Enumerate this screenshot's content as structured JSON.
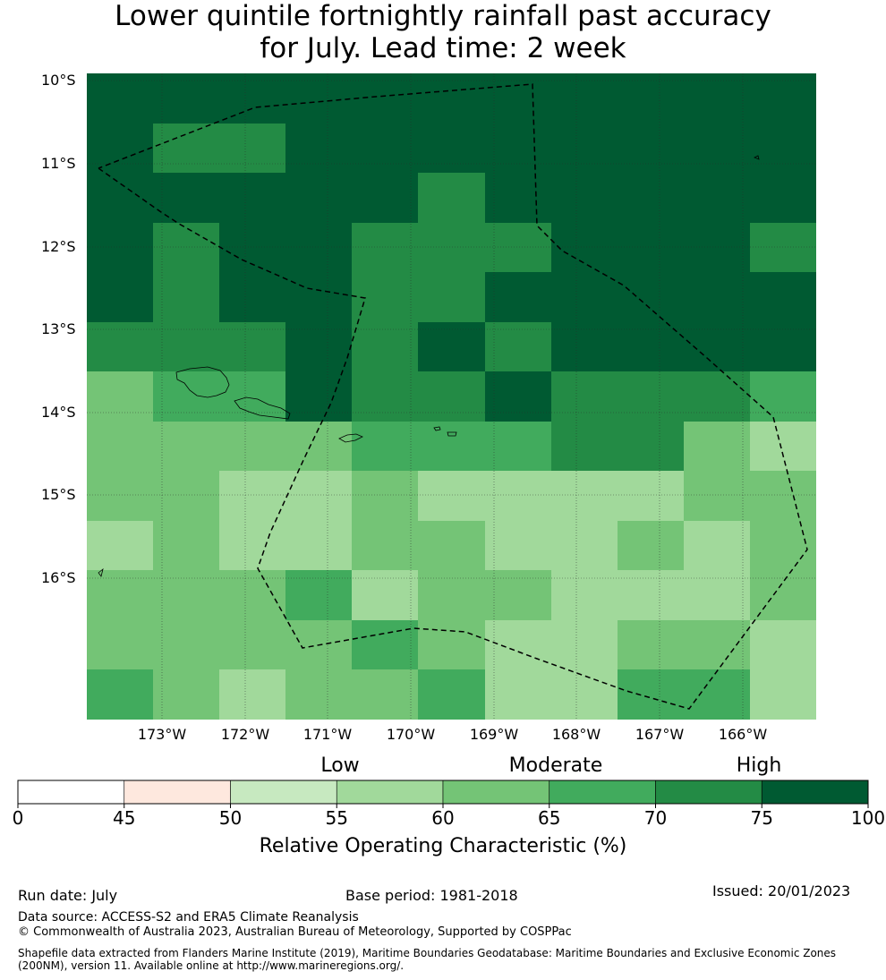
{
  "title": {
    "line1": "Lower quintile fortnightly rainfall past accuracy",
    "line2": "for July. Lead time: 2 week"
  },
  "map": {
    "lat_labels": [
      "10°S",
      "11°S",
      "12°S",
      "13°S",
      "14°S",
      "15°S",
      "16°S"
    ],
    "lon_labels": [
      "173°W",
      "172°W",
      "171°W",
      "170°W",
      "169°W",
      "168°W",
      "167°W",
      "166°W"
    ],
    "grid_lines": "dotted",
    "boundary_style": "dashed",
    "grid_values_roc_pct": [
      [
        80,
        80,
        80,
        80,
        80,
        80,
        80,
        80,
        80,
        80,
        80
      ],
      [
        80,
        72,
        72,
        80,
        80,
        80,
        80,
        80,
        80,
        80,
        80
      ],
      [
        80,
        80,
        80,
        80,
        80,
        72,
        80,
        80,
        80,
        80,
        80
      ],
      [
        80,
        72,
        80,
        80,
        72,
        72,
        72,
        80,
        80,
        80,
        72
      ],
      [
        80,
        72,
        80,
        80,
        72,
        72,
        80,
        80,
        80,
        80,
        80
      ],
      [
        72,
        72,
        72,
        80,
        72,
        80,
        72,
        80,
        80,
        80,
        80
      ],
      [
        62,
        67,
        67,
        80,
        72,
        72,
        80,
        72,
        72,
        72,
        67
      ],
      [
        62,
        62,
        62,
        62,
        67,
        67,
        67,
        72,
        72,
        62,
        57
      ],
      [
        62,
        62,
        57,
        57,
        62,
        57,
        57,
        57,
        57,
        62,
        62
      ],
      [
        57,
        62,
        57,
        57,
        62,
        62,
        57,
        57,
        62,
        57,
        62
      ],
      [
        62,
        62,
        62,
        67,
        57,
        62,
        62,
        57,
        57,
        57,
        62
      ],
      [
        62,
        62,
        62,
        62,
        67,
        62,
        57,
        57,
        62,
        62,
        57
      ],
      [
        67,
        62,
        57,
        62,
        62,
        67,
        57,
        57,
        67,
        67,
        57
      ]
    ]
  },
  "colorbar": {
    "category_labels": [
      "Low",
      "Moderate",
      "High"
    ],
    "ticks": [
      "0",
      "45",
      "50",
      "55",
      "60",
      "65",
      "70",
      "75",
      "100"
    ],
    "colors": [
      "#ffffff",
      "#fee8de",
      "#c7e9c0",
      "#a1d99b",
      "#74c476",
      "#41ab5d",
      "#238b45",
      "#005a32"
    ],
    "title": "Relative Operating Characteristic (%)"
  },
  "footer": {
    "run_date": "Run date: July",
    "base_period": "Base period: 1981-2018",
    "issued": "Issued: 20/01/2023",
    "data_source": "Data source: ACCESS-S2 and ERA5 Climate Reanalysis",
    "copyright": "© Commonwealth of Australia 2023, Australian Bureau of Meteorology, Supported by COSPPac",
    "shapefile": "Shapefile data extracted from Flanders Marine Institute (2019), Maritime Boundaries Geodatabase: Maritime Boundaries and Exclusive Economic Zones (200NM), version 11. Available online at http://www.marineregions.org/."
  }
}
